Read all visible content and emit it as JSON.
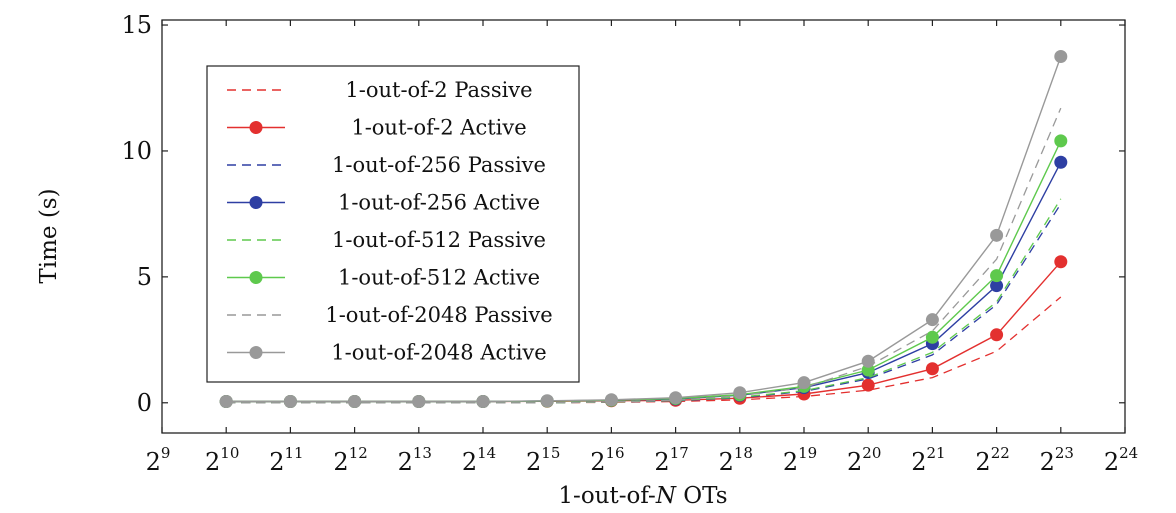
{
  "chart_data": {
    "type": "line",
    "xlabel": "1-out-of-N OTs",
    "ylabel": "Time (s)",
    "xscale": "log2",
    "x_tick_base": "2",
    "x_tick_exponents": [
      "9",
      "10",
      "11",
      "12",
      "13",
      "14",
      "15",
      "16",
      "17",
      "18",
      "19",
      "20",
      "21",
      "22",
      "23",
      "24"
    ],
    "xlim": [
      512,
      16777216
    ],
    "ylim": [
      -1.2,
      15.2
    ],
    "y_ticks": [
      "0",
      "5",
      "10",
      "15"
    ],
    "x": [
      1024,
      2048,
      4096,
      8192,
      16384,
      32768,
      65536,
      131072,
      262144,
      524288,
      1048576,
      2097152,
      4194304,
      8388608
    ],
    "grid": false,
    "legend_position": "top-left",
    "colors": {
      "red": "#e3302f",
      "blue": "#2e3fa3",
      "green": "#5ec94d",
      "gray": "#999999",
      "axis": "#222222"
    },
    "series": [
      {
        "name": "1-out-of-2 Passive",
        "style": "dashed",
        "color": "#e3302f",
        "values": [
          0.0,
          0.0,
          0.0,
          0.0,
          0.0,
          0.0,
          0.02,
          0.05,
          0.12,
          0.25,
          0.5,
          1.0,
          2.05,
          4.2
        ]
      },
      {
        "name": "1-out-of-2 Active",
        "style": "solid-marker",
        "color": "#e3302f",
        "values": [
          0.05,
          0.05,
          0.05,
          0.05,
          0.05,
          0.06,
          0.08,
          0.1,
          0.18,
          0.35,
          0.7,
          1.35,
          2.7,
          5.6
        ]
      },
      {
        "name": "1-out-of-256 Passive",
        "style": "dashed",
        "color": "#2e3fa3",
        "values": [
          0.0,
          0.0,
          0.0,
          0.0,
          0.0,
          0.0,
          0.03,
          0.08,
          0.2,
          0.45,
          0.95,
          1.9,
          3.9,
          7.9
        ]
      },
      {
        "name": "1-out-of-256 Active",
        "style": "solid-marker",
        "color": "#2e3fa3",
        "values": [
          0.05,
          0.05,
          0.05,
          0.05,
          0.05,
          0.07,
          0.1,
          0.15,
          0.3,
          0.6,
          1.2,
          2.35,
          4.65,
          9.55
        ]
      },
      {
        "name": "1-out-of-512 Passive",
        "style": "dashed",
        "color": "#5ec94d",
        "values": [
          0.0,
          0.0,
          0.0,
          0.0,
          0.0,
          0.0,
          0.03,
          0.09,
          0.22,
          0.48,
          1.0,
          2.0,
          4.0,
          8.1
        ]
      },
      {
        "name": "1-out-of-512 Active",
        "style": "solid-marker",
        "color": "#5ec94d",
        "values": [
          0.05,
          0.05,
          0.05,
          0.05,
          0.05,
          0.07,
          0.1,
          0.17,
          0.32,
          0.65,
          1.3,
          2.6,
          5.05,
          10.4
        ]
      },
      {
        "name": "1-out-of-2048 Passive",
        "style": "dashed",
        "color": "#999999",
        "values": [
          0.0,
          0.0,
          0.0,
          0.0,
          0.0,
          0.0,
          0.04,
          0.1,
          0.28,
          0.6,
          1.45,
          2.85,
          5.7,
          11.7
        ]
      },
      {
        "name": "1-out-of-2048 Active",
        "style": "solid-marker",
        "color": "#999999",
        "values": [
          0.05,
          0.05,
          0.05,
          0.05,
          0.05,
          0.08,
          0.12,
          0.2,
          0.4,
          0.8,
          1.65,
          3.3,
          6.65,
          13.75
        ]
      }
    ]
  }
}
